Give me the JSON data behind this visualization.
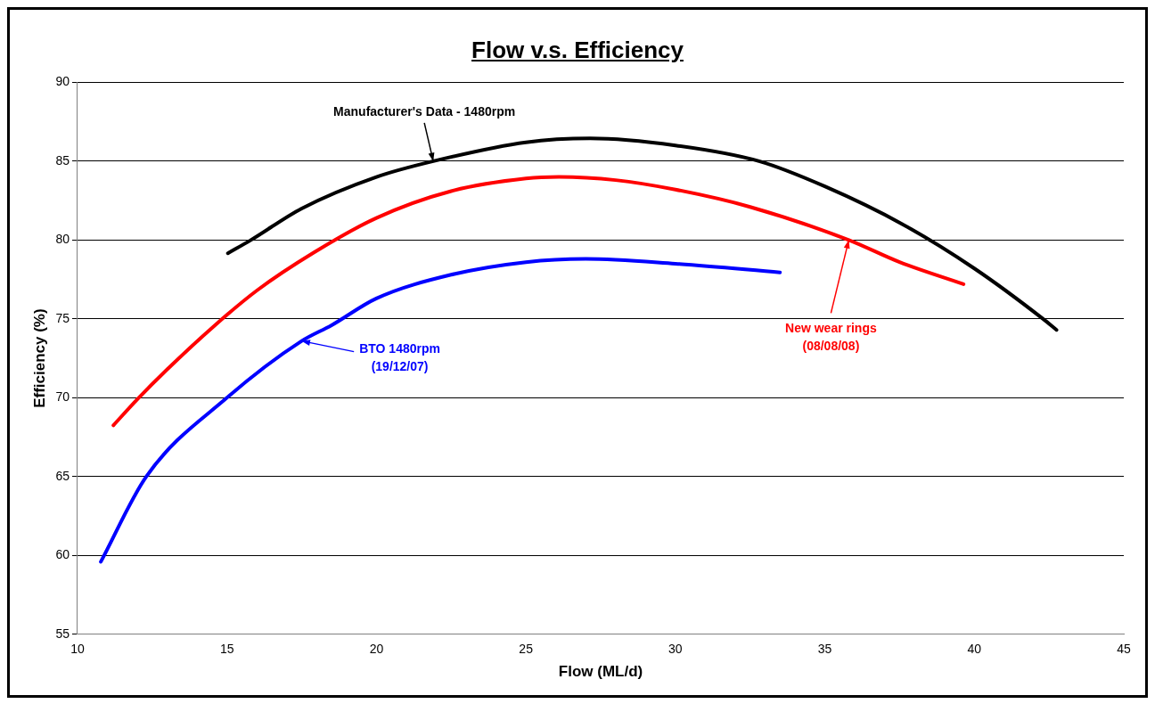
{
  "chart_data": {
    "type": "line",
    "title": "Flow v.s. Efficiency",
    "xlabel": "Flow (ML/d)",
    "ylabel": "Efficiency (%)",
    "xlim": [
      10,
      45
    ],
    "xticks": [
      10,
      15,
      20,
      25,
      30,
      35,
      40,
      45
    ],
    "ylim": [
      55,
      90
    ],
    "yticks": [
      55,
      60,
      65,
      70,
      75,
      80,
      85,
      90
    ],
    "grid": "y",
    "legend": false,
    "marker": "none",
    "line_style": "solid",
    "series": [
      {
        "color": "#000000",
        "x": [
          15.03,
          15.8,
          17.5,
          20,
          21.9,
          25,
          27.15,
          30,
          32.8,
          35,
          37.6,
          40,
          42.3,
          42.75
        ],
        "values": [
          79.16,
          80,
          82.0,
          84.0,
          85,
          86.2,
          86.45,
          86.0,
          85,
          83.4,
          81.0,
          78.2,
          75,
          74.3
        ]
      },
      {
        "color": "#ff0000",
        "x": [
          11.2,
          12,
          13,
          14.6,
          16,
          17.9,
          20,
          22.5,
          25,
          26.1,
          28,
          30,
          32.5,
          35.8,
          37.5,
          39.64
        ],
        "values": [
          68.25,
          69.9,
          71.8,
          74.6,
          76.8,
          79.2,
          81.4,
          83.1,
          83.9,
          84.0,
          83.8,
          83.2,
          82.1,
          80,
          78.6,
          77.2
        ]
      },
      {
        "color": "#0000ff",
        "x": [
          10.78,
          12.3,
          15,
          17.5,
          18.5,
          20,
          22.5,
          25,
          27,
          30,
          33.5
        ],
        "values": [
          59.6,
          65,
          70,
          73.6,
          74.6,
          76.3,
          77.8,
          78.6,
          78.8,
          78.5,
          77.95
        ]
      }
    ],
    "annotations": [
      {
        "text": "Manufacturer's Data - 1480rpm",
        "x": 21.9,
        "y": 85
      },
      {
        "text": "New wear rings (08/08/08)",
        "x": 35.8,
        "y": 80
      },
      {
        "text": "BTO 1480rpm (19/12/07)",
        "x": 17.5,
        "y": 73.6
      }
    ]
  }
}
